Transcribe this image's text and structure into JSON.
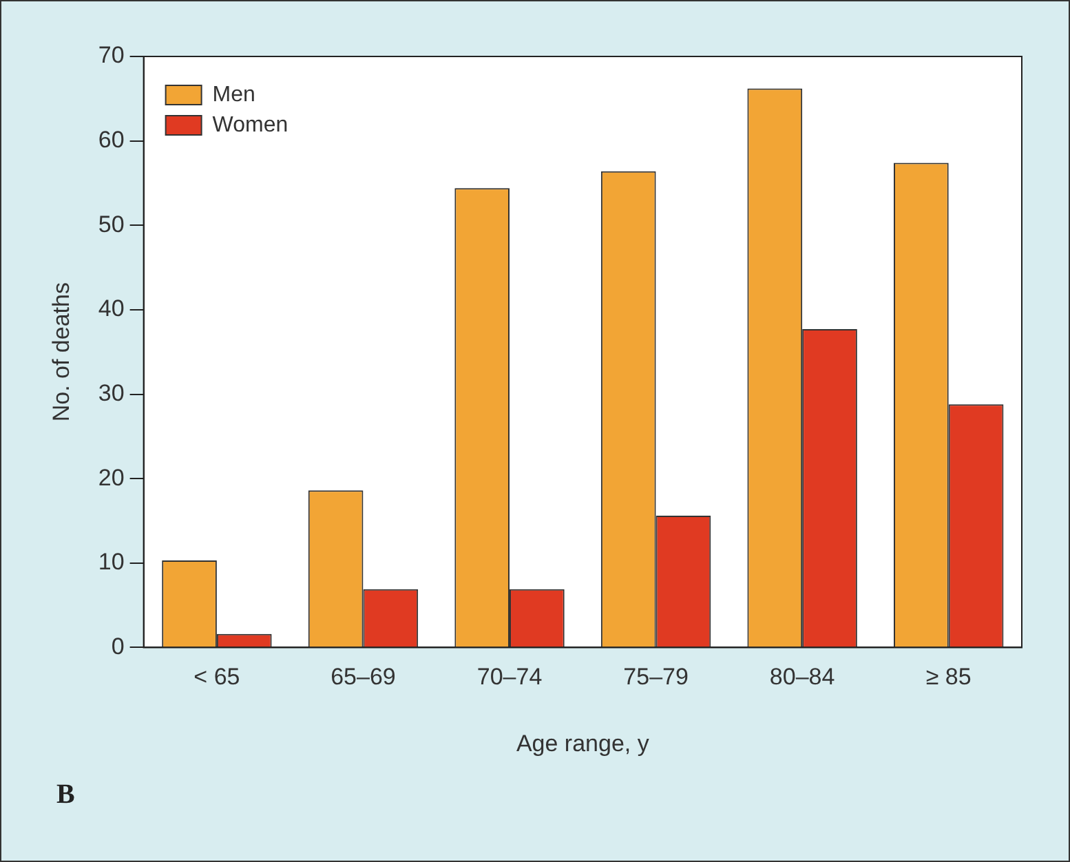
{
  "chart_data": {
    "type": "bar",
    "xlabel": "Age range, y",
    "ylabel": "No. of deaths",
    "categories": [
      "< 65",
      "65–69",
      "70–74",
      "75–79",
      "80–84",
      "≥ 85"
    ],
    "series": [
      {
        "name": "Men",
        "color": "#f2a535",
        "values": [
          10.3,
          18.6,
          54.4,
          56.4,
          66.2,
          57.4
        ]
      },
      {
        "name": "Women",
        "color": "#e03a22",
        "values": [
          1.6,
          6.9,
          6.9,
          15.6,
          37.7,
          28.8
        ]
      }
    ],
    "ylim": [
      0,
      70
    ],
    "yticks": [
      0,
      10,
      20,
      30,
      40,
      50,
      60,
      70
    ],
    "grid": false,
    "legend": "top left",
    "annotations": [
      "B"
    ]
  }
}
